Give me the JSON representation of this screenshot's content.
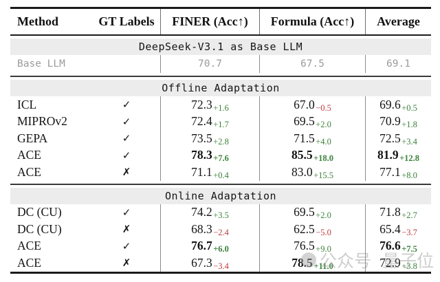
{
  "table": {
    "columns": [
      {
        "label": "Method"
      },
      {
        "label": "GT Labels"
      },
      {
        "label": "FINER (Acc↑)"
      },
      {
        "label": "Formula (Acc↑)"
      },
      {
        "label": "Average"
      }
    ],
    "sections": [
      {
        "banner": "DeepSeek-V3.1 as Base LLM",
        "rows": [
          {
            "method": "Base LLM",
            "gt": {
              "name": "none",
              "glyph": ""
            },
            "muted": true,
            "cells": [
              {
                "value": "70.7"
              },
              {
                "value": "67.5"
              },
              {
                "value": "69.1"
              }
            ]
          }
        ]
      },
      {
        "banner": "Offline Adaptation",
        "rows": [
          {
            "method": "ICL",
            "gt": {
              "name": "check",
              "glyph": "✓"
            },
            "cells": [
              {
                "value": "72.3",
                "delta": "+1.6"
              },
              {
                "value": "67.0",
                "delta": "−0.5"
              },
              {
                "value": "69.6",
                "delta": "+0.5"
              }
            ]
          },
          {
            "method": "MIPROv2",
            "gt": {
              "name": "check",
              "glyph": "✓"
            },
            "cells": [
              {
                "value": "72.4",
                "delta": "+1.7"
              },
              {
                "value": "69.5",
                "delta": "+2.0"
              },
              {
                "value": "70.9",
                "delta": "+1.8"
              }
            ]
          },
          {
            "method": "GEPA",
            "gt": {
              "name": "check",
              "glyph": "✓"
            },
            "cells": [
              {
                "value": "73.5",
                "delta": "+2.8"
              },
              {
                "value": "71.5",
                "delta": "+4.0"
              },
              {
                "value": "72.5",
                "delta": "+3.4"
              }
            ]
          },
          {
            "method": "ACE",
            "gt": {
              "name": "check",
              "glyph": "✓"
            },
            "cells": [
              {
                "value": "78.3",
                "delta": "+7.6",
                "bold": true
              },
              {
                "value": "85.5",
                "delta": "+18.0",
                "bold": true
              },
              {
                "value": "81.9",
                "delta": "+12.8",
                "bold": true
              }
            ]
          },
          {
            "method": "ACE",
            "gt": {
              "name": "cross",
              "glyph": "✗"
            },
            "cells": [
              {
                "value": "71.1",
                "delta": "+0.4"
              },
              {
                "value": "83.0",
                "delta": "+15.5"
              },
              {
                "value": "77.1",
                "delta": "+8.0"
              }
            ]
          }
        ]
      },
      {
        "banner": "Online Adaptation",
        "rows": [
          {
            "method": "DC (CU)",
            "gt": {
              "name": "check",
              "glyph": "✓"
            },
            "cells": [
              {
                "value": "74.2",
                "delta": "+3.5"
              },
              {
                "value": "69.5",
                "delta": "+2.0"
              },
              {
                "value": "71.8",
                "delta": "+2.7"
              }
            ]
          },
          {
            "method": "DC (CU)",
            "gt": {
              "name": "cross",
              "glyph": "✗"
            },
            "cells": [
              {
                "value": "68.3",
                "delta": "−2.4"
              },
              {
                "value": "62.5",
                "delta": "−5.0"
              },
              {
                "value": "65.4",
                "delta": "−3.7"
              }
            ]
          },
          {
            "method": "ACE",
            "gt": {
              "name": "check",
              "glyph": "✓"
            },
            "cells": [
              {
                "value": "76.7",
                "delta": "+6.0",
                "bold": true
              },
              {
                "value": "76.5",
                "delta": "+9.0"
              },
              {
                "value": "76.6",
                "delta": "+7.5",
                "bold": true
              }
            ]
          },
          {
            "method": "ACE",
            "gt": {
              "name": "cross",
              "glyph": "✗"
            },
            "cells": [
              {
                "value": "67.3",
                "delta": "−3.4"
              },
              {
                "value": "78.5",
                "delta": "+11.0",
                "bold": true
              },
              {
                "value": "72.9",
                "delta": "+3.8"
              }
            ]
          }
        ]
      }
    ]
  },
  "watermark": {
    "text1": "公众号",
    "text2": "量子位"
  },
  "colors": {
    "positive": "#3c823c",
    "negative": "#c03a3f",
    "muted_text": "#9b9b9b",
    "banner_bg": "#ececec",
    "rule": "#1b1b1b"
  }
}
